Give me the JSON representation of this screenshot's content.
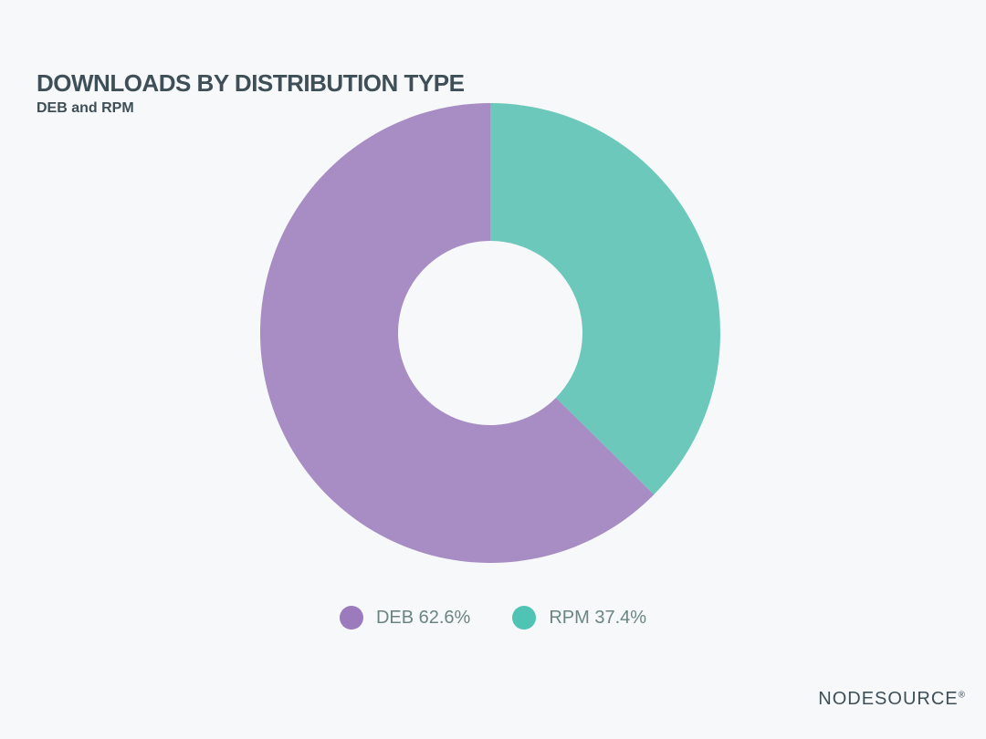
{
  "chart_data": {
    "type": "pie",
    "donut": true,
    "title": "DOWNLOADS BY DISTRIBUTION TYPE",
    "subtitle": "DEB and RPM",
    "categories": [
      "RPM",
      "DEB"
    ],
    "values": [
      37.4,
      62.6
    ],
    "colors": [
      "#6dc8bc",
      "#a78dc3"
    ],
    "legend_colors": [
      "#4fc3b4",
      "#9b7bbb"
    ],
    "legend": [
      {
        "label": "DEB 62.6%",
        "color": "#9b7bbb"
      },
      {
        "label": "RPM 37.4%",
        "color": "#4fc3b4"
      }
    ],
    "legend_position": "bottom-center"
  },
  "brand": {
    "name": "NODESOURCE",
    "mark": "®"
  }
}
